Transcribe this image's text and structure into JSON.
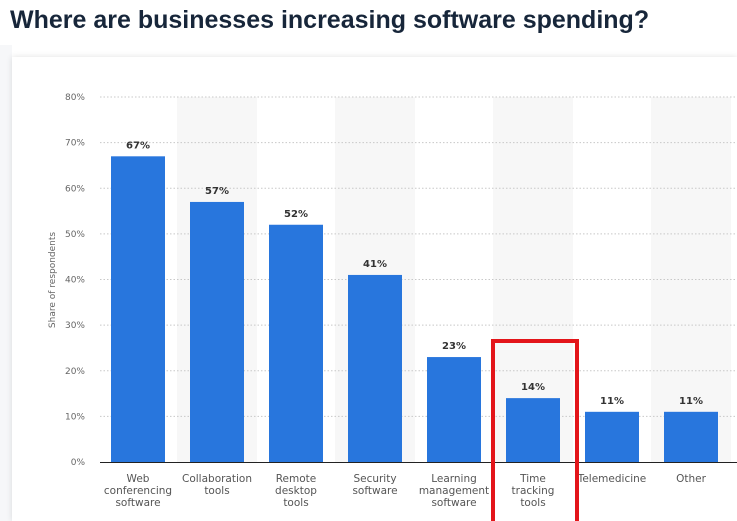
{
  "title": "Where are businesses increasing software spending?",
  "chart_data": {
    "type": "bar",
    "ylabel": "Share of respondents",
    "xlabel": "",
    "ylim": [
      0,
      80
    ],
    "yticks": [
      "0%",
      "10%",
      "20%",
      "30%",
      "40%",
      "50%",
      "60%",
      "70%",
      "80%"
    ],
    "grid": true,
    "categories": [
      [
        "Web",
        "conferencing",
        "software"
      ],
      [
        "Collaboration",
        "tools"
      ],
      [
        "Remote",
        "desktop",
        "tools"
      ],
      [
        "Security",
        "software"
      ],
      [
        "Learning",
        "management",
        "software"
      ],
      [
        "Time",
        "tracking",
        "tools"
      ],
      [
        "Telemedicine"
      ],
      [
        "Other"
      ]
    ],
    "values": [
      67,
      57,
      52,
      41,
      23,
      14,
      11,
      11
    ],
    "data_labels": [
      "67%",
      "57%",
      "52%",
      "41%",
      "23%",
      "14%",
      "11%",
      "11%"
    ],
    "bar_color": "#2876dd",
    "highlight": {
      "category_index": 5,
      "color": "#e3151a"
    }
  }
}
